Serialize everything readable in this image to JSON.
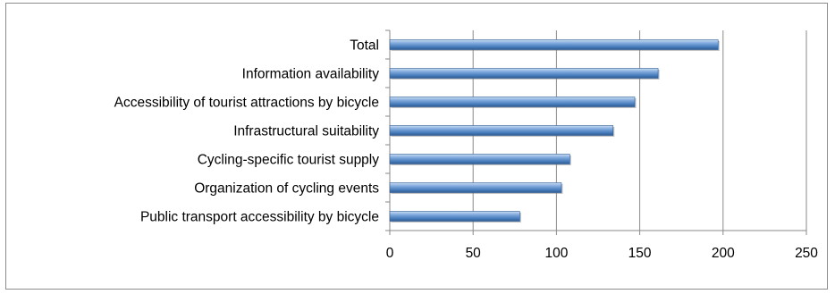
{
  "chart_data": {
    "type": "bar",
    "orientation": "horizontal",
    "categories": [
      "Total",
      "Information availability",
      "Accessibility of tourist attractions by bicycle",
      "Infrastructural suitability",
      "Cycling-specific tourist supply ",
      "Organization of cycling events",
      "Public transport accessibility by bicycle"
    ],
    "values": [
      197,
      161,
      147,
      134,
      108,
      103,
      78
    ],
    "xlim": [
      0,
      250
    ],
    "x_ticks": [
      0,
      50,
      100,
      150,
      200,
      250
    ],
    "x_tick_labels": [
      "0",
      "50",
      "100",
      "150",
      "200",
      "250"
    ],
    "grid": "vertical",
    "legend": "none",
    "bar_color": "#4f81bd",
    "title": "",
    "xlabel": "",
    "ylabel": ""
  }
}
